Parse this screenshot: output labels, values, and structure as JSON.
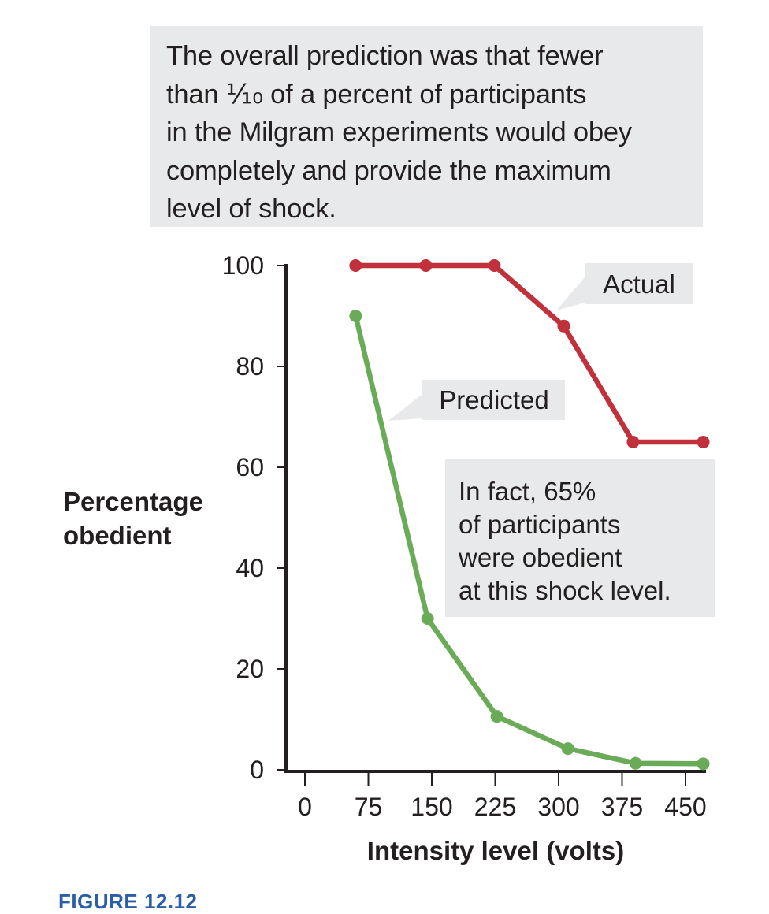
{
  "caption": {
    "lines": [
      "The overall prediction was that fewer",
      "than ⅒ of a percent of participants",
      "in the Milgram experiments would obey",
      "completely and provide the maximum",
      "level of shock."
    ]
  },
  "figure_label": "FIGURE 12.12",
  "colors": {
    "actual": "#c0313b",
    "predicted": "#6aab57",
    "callout_bg": "#e8e9ea",
    "axis": "#231f20",
    "figure_label": "#2a5ea8"
  },
  "chart_data": {
    "type": "line",
    "title": "",
    "xlabel": "Intensity level (volts)",
    "ylabel": "Percentage obedient",
    "xlim": [
      -15,
      480
    ],
    "ylim": [
      0,
      100
    ],
    "x_ticks": [
      0,
      75,
      150,
      225,
      300,
      375,
      450
    ],
    "y_ticks": [
      0,
      20,
      40,
      60,
      80,
      100
    ],
    "grid": false,
    "legend": "inline callouts",
    "series": [
      {
        "name": "Actual",
        "x": [
          60,
          143,
          224,
          306,
          388,
          471
        ],
        "values": [
          100,
          100,
          100,
          88,
          65,
          65
        ]
      },
      {
        "name": "Predicted",
        "x": [
          60,
          145,
          227,
          311,
          391,
          471
        ],
        "values": [
          90,
          30,
          10.6,
          4.2,
          1.3,
          1.2
        ]
      }
    ],
    "annotations": [
      {
        "id": "actual-label",
        "text": "Actual"
      },
      {
        "id": "predicted-label",
        "text": "Predicted"
      },
      {
        "id": "fact-note",
        "lines": [
          "In fact, 65%",
          "of participants",
          "were obedient",
          "at this shock level."
        ]
      }
    ]
  }
}
